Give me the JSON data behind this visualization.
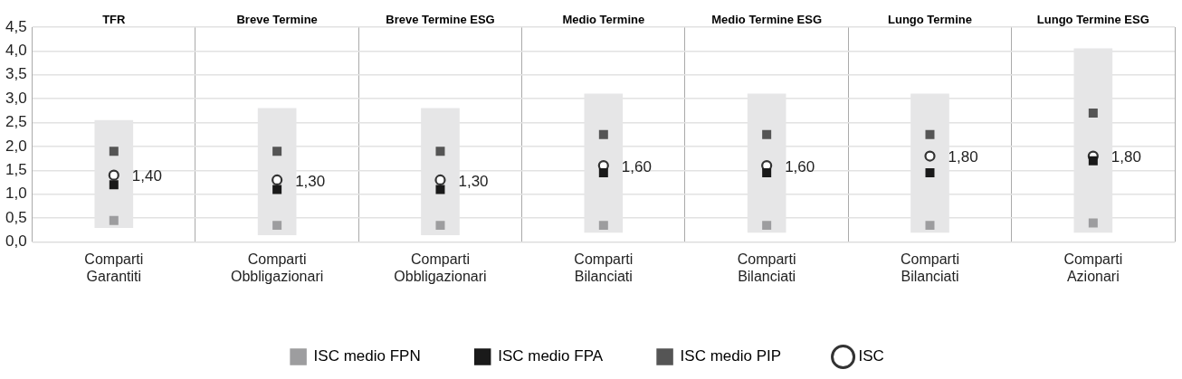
{
  "chart_data": {
    "type": "bar",
    "categories": [
      "Comparti Garantiti",
      "Comparti Obbligazionari",
      "Comparti Obbligazionari",
      "Comparti Bilanciati",
      "Comparti Bilanciati",
      "Comparti Bilanciati",
      "Comparti Azionari"
    ],
    "annotations": [
      "TFR",
      "Breve Termine",
      "Breve Termine ESG",
      "Medio Termine",
      "Medio Termine ESG",
      "Lungo Termine",
      "Lungo Termine ESG"
    ],
    "ylim": [
      0,
      4.5
    ],
    "yticks": [
      {
        "value": 0,
        "label": "0,0"
      },
      {
        "value": 0.5,
        "label": "0,5"
      },
      {
        "value": 1,
        "label": "1,0"
      },
      {
        "value": 1.5,
        "label": "1,5"
      },
      {
        "value": 2,
        "label": "2,0"
      },
      {
        "value": 2.5,
        "label": "2,5"
      },
      {
        "value": 3,
        "label": "3,0"
      },
      {
        "value": 3.5,
        "label": "3,5"
      },
      {
        "value": 4,
        "label": "4,0"
      },
      {
        "value": 4.5,
        "label": "4,5"
      }
    ],
    "grid": true,
    "legend": "bottom",
    "series": [
      {
        "color": "#e6e6e7",
        "base": [
          0.3,
          0.15,
          0.15,
          0.2,
          0.2,
          0.2,
          0.2
        ],
        "values": [
          2.25,
          2.65,
          2.65,
          2.9,
          2.9,
          2.9,
          3.85
        ]
      },
      {
        "type": "scatter",
        "name": "ISC medio FPN",
        "color": "#9d9d9f",
        "marker": "square",
        "values": [
          0.45,
          0.35,
          0.35,
          0.35,
          0.35,
          0.35,
          0.4
        ]
      },
      {
        "type": "scatter",
        "name": "ISC medio FPA",
        "color": "#1a1a1a",
        "marker": "square",
        "values": [
          1.2,
          1.1,
          1.1,
          1.45,
          1.45,
          1.45,
          1.7
        ]
      },
      {
        "type": "scatter",
        "name": "ISC medio PIP",
        "color": "#555555",
        "marker": "square",
        "values": [
          1.9,
          1.9,
          1.9,
          2.25,
          2.25,
          2.25,
          2.7
        ]
      },
      {
        "type": "scatter",
        "name": "ISC",
        "color": "#333333",
        "marker": "circle",
        "values": [
          1.4,
          1.3,
          1.3,
          1.6,
          1.6,
          1.8,
          1.8
        ],
        "value_labels": [
          "1,40",
          "1,30",
          "1,30",
          "1,60",
          "1,60",
          "1,80",
          "1,80"
        ]
      }
    ]
  }
}
